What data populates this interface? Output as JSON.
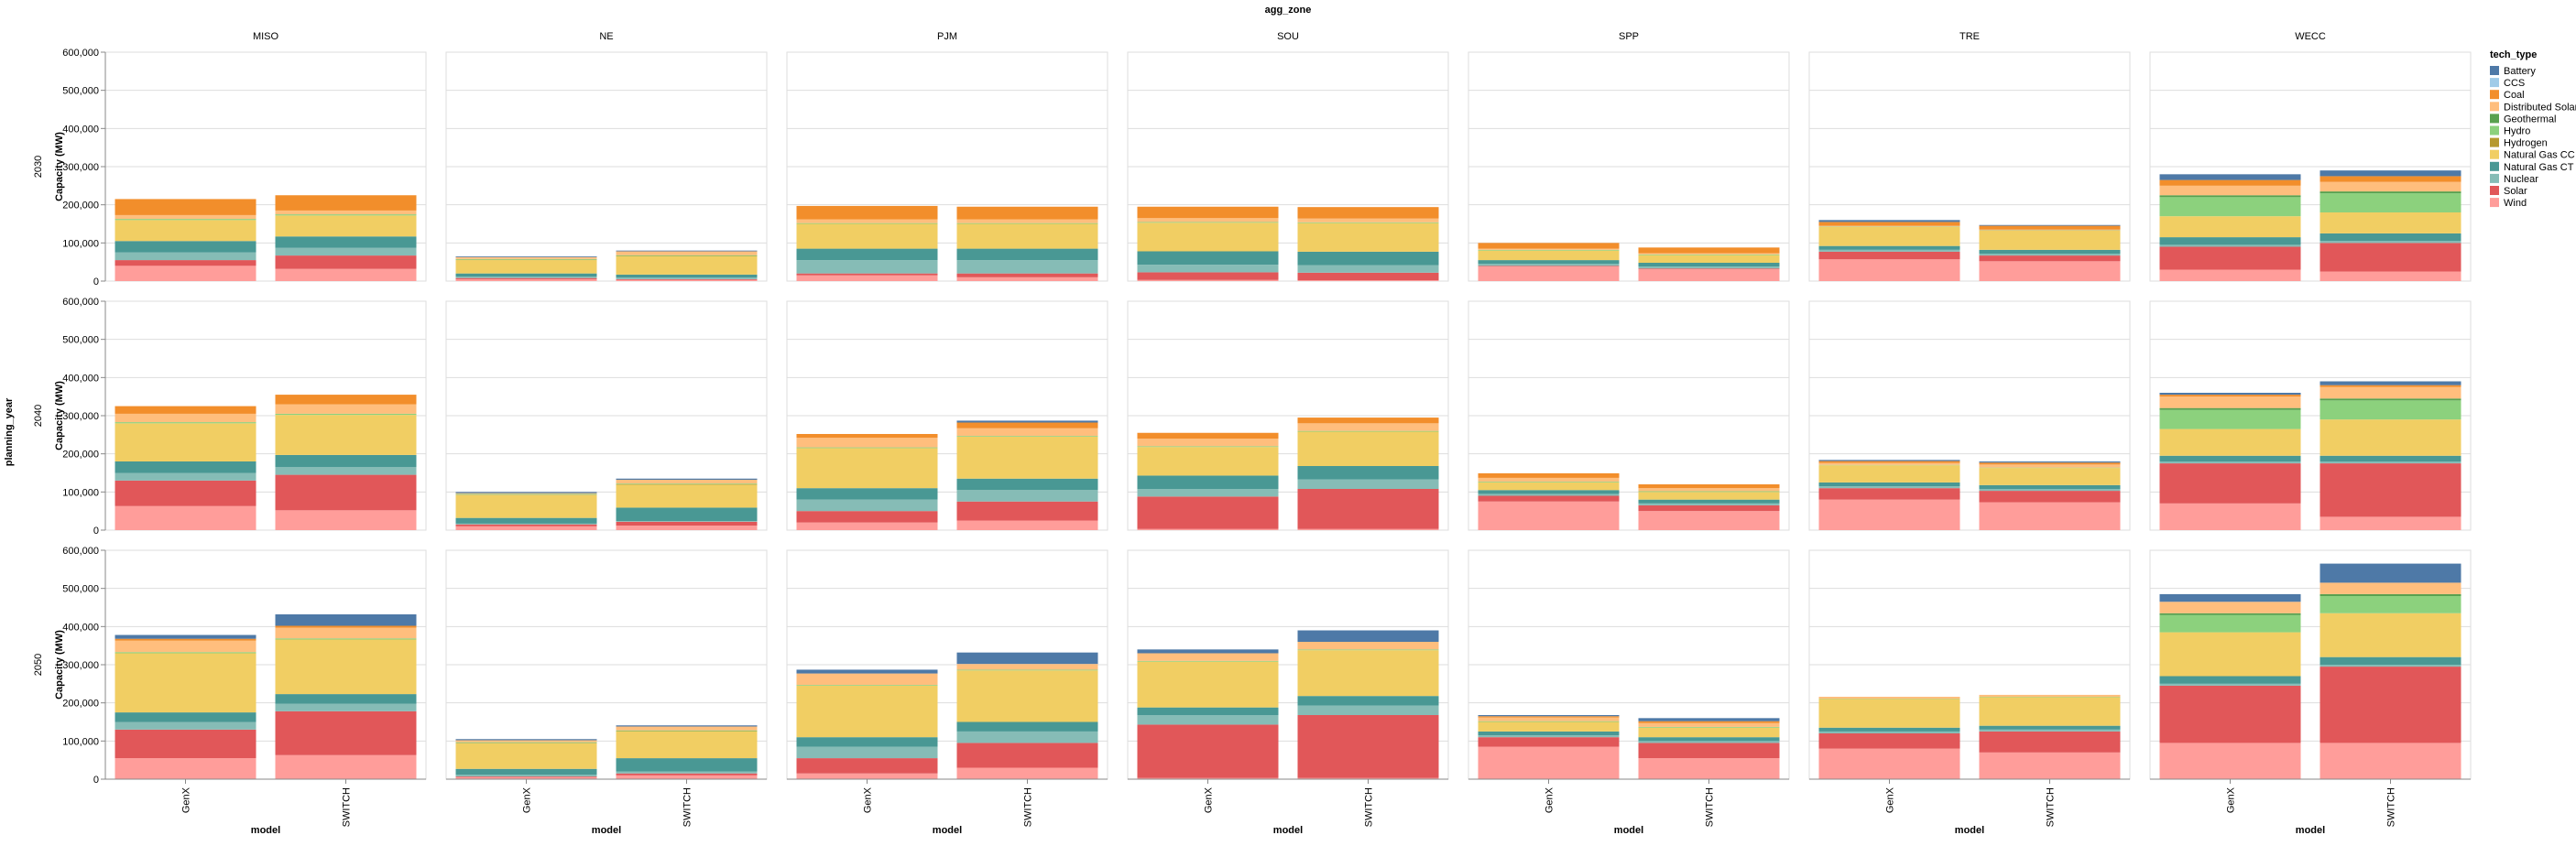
{
  "chart_data": {
    "type": "bar",
    "stacked": true,
    "facet_column_title": "agg_zone",
    "facet_row_title": "planning_year",
    "zones": [
      "MISO",
      "NE",
      "PJM",
      "SOU",
      "SPP",
      "TRE",
      "WECC"
    ],
    "years": [
      "2030",
      "2040",
      "2050"
    ],
    "categories": [
      "GenX",
      "SWITCH"
    ],
    "xlabel": "model",
    "ylabel": "Capacity (MW)",
    "ylim": [
      0,
      600000
    ],
    "yticks": [
      0,
      100000,
      200000,
      300000,
      400000,
      500000,
      600000
    ],
    "ytick_labels": [
      "0",
      "100,000",
      "200,000",
      "300,000",
      "400,000",
      "500,000",
      "600,000"
    ],
    "legend_title": "tech_type",
    "legend_position": "right",
    "grid": true,
    "tech_types": [
      "Battery",
      "CCS",
      "Coal",
      "Distributed Solar",
      "Geothermal",
      "Hydro",
      "Hydrogen",
      "Natural Gas CC",
      "Natural Gas CT",
      "Nuclear",
      "Solar",
      "Wind"
    ],
    "colors": {
      "Battery": "#4e79a7",
      "CCS": "#a0cbe8",
      "Coal": "#f28e2b",
      "Distributed Solar": "#ffbe7d",
      "Geothermal": "#59a14f",
      "Hydro": "#8cd17d",
      "Hydrogen": "#b6992d",
      "Natural Gas CC": "#f1ce63",
      "Natural Gas CT": "#499894",
      "Nuclear": "#86bcb6",
      "Solar": "#e15759",
      "Wind": "#ff9d9a"
    },
    "stack_order": [
      "Wind",
      "Solar",
      "Nuclear",
      "Natural Gas CT",
      "Natural Gas CC",
      "Hydrogen",
      "Hydro",
      "Geothermal",
      "Distributed Solar",
      "Coal",
      "CCS",
      "Battery"
    ],
    "values": {
      "MISO": {
        "2030": {
          "GenX": {
            "Battery": 0,
            "CCS": 0,
            "Coal": 42000,
            "Distributed Solar": 10000,
            "Geothermal": 0,
            "Hydro": 3000,
            "Hydrogen": 0,
            "Natural Gas CC": 55000,
            "Natural Gas CT": 30000,
            "Nuclear": 20000,
            "Solar": 15000,
            "Wind": 40000
          },
          "SWITCH": {
            "Battery": 0,
            "CCS": 0,
            "Coal": 40000,
            "Distributed Solar": 10000,
            "Geothermal": 0,
            "Hydro": 3000,
            "Hydrogen": 0,
            "Natural Gas CC": 55000,
            "Natural Gas CT": 30000,
            "Nuclear": 20000,
            "Solar": 35000,
            "Wind": 32000
          }
        },
        "2040": {
          "GenX": {
            "Battery": 0,
            "CCS": 0,
            "Coal": 20000,
            "Distributed Solar": 22000,
            "Geothermal": 0,
            "Hydro": 3000,
            "Hydrogen": 0,
            "Natural Gas CC": 100000,
            "Natural Gas CT": 30000,
            "Nuclear": 20000,
            "Solar": 67000,
            "Wind": 63000
          },
          "SWITCH": {
            "Battery": 0,
            "CCS": 0,
            "Coal": 25000,
            "Distributed Solar": 25000,
            "Geothermal": 0,
            "Hydro": 3000,
            "Hydrogen": 0,
            "Natural Gas CC": 105000,
            "Natural Gas CT": 32000,
            "Nuclear": 20000,
            "Solar": 93000,
            "Wind": 52000
          }
        },
        "2050": {
          "GenX": {
            "Battery": 10000,
            "CCS": 0,
            "Coal": 5000,
            "Distributed Solar": 30000,
            "Geothermal": 0,
            "Hydro": 3000,
            "Hydrogen": 0,
            "Natural Gas CC": 155000,
            "Natural Gas CT": 25000,
            "Nuclear": 20000,
            "Solar": 75000,
            "Wind": 55000
          },
          "SWITCH": {
            "Battery": 30000,
            "CCS": 0,
            "Coal": 5000,
            "Distributed Solar": 28000,
            "Geothermal": 0,
            "Hydro": 3000,
            "Hydrogen": 0,
            "Natural Gas CC": 143000,
            "Natural Gas CT": 25000,
            "Nuclear": 20000,
            "Solar": 115000,
            "Wind": 63000
          }
        }
      },
      "NE": {
        "2030": {
          "GenX": {
            "Battery": 2000,
            "CCS": 0,
            "Coal": 0,
            "Distributed Solar": 5000,
            "Geothermal": 0,
            "Hydro": 2000,
            "Hydrogen": 1000,
            "Natural Gas CC": 35000,
            "Natural Gas CT": 8000,
            "Nuclear": 4000,
            "Solar": 3000,
            "Wind": 5000
          },
          "SWITCH": {
            "Battery": 2000,
            "CCS": 0,
            "Coal": 0,
            "Distributed Solar": 10000,
            "Geothermal": 0,
            "Hydro": 2000,
            "Hydrogen": 1000,
            "Natural Gas CC": 48000,
            "Natural Gas CT": 8000,
            "Nuclear": 4000,
            "Solar": 2000,
            "Wind": 3000
          }
        },
        "2040": {
          "GenX": {
            "Battery": 3000,
            "CCS": 0,
            "Coal": 0,
            "Distributed Solar": 2000,
            "Geothermal": 0,
            "Hydro": 2000,
            "Hydrogen": 1000,
            "Natural Gas CC": 60000,
            "Natural Gas CT": 15000,
            "Nuclear": 2000,
            "Solar": 5000,
            "Wind": 10000
          },
          "SWITCH": {
            "Battery": 3000,
            "CCS": 0,
            "Coal": 0,
            "Distributed Solar": 10000,
            "Geothermal": 0,
            "Hydro": 2000,
            "Hydrogen": 1000,
            "Natural Gas CC": 60000,
            "Natural Gas CT": 35000,
            "Nuclear": 2000,
            "Solar": 10000,
            "Wind": 12000
          }
        },
        "2050": {
          "GenX": {
            "Battery": 3000,
            "CCS": 0,
            "Coal": 0,
            "Distributed Solar": 5000,
            "Geothermal": 0,
            "Hydro": 2000,
            "Hydrogen": 1000,
            "Natural Gas CC": 67000,
            "Natural Gas CT": 15000,
            "Nuclear": 5000,
            "Solar": 2000,
            "Wind": 5000
          },
          "SWITCH": {
            "Battery": 3000,
            "CCS": 0,
            "Coal": 0,
            "Distributed Solar": 10000,
            "Geothermal": 0,
            "Hydro": 2000,
            "Hydrogen": 1000,
            "Natural Gas CC": 70000,
            "Natural Gas CT": 35000,
            "Nuclear": 5000,
            "Solar": 5000,
            "Wind": 10000
          }
        }
      },
      "PJM": {
        "2030": {
          "GenX": {
            "Battery": 0,
            "CCS": 0,
            "Coal": 35000,
            "Distributed Solar": 10000,
            "Geothermal": 0,
            "Hydro": 2000,
            "Hydrogen": 0,
            "Natural Gas CC": 65000,
            "Natural Gas CT": 30000,
            "Nuclear": 35000,
            "Solar": 5000,
            "Wind": 15000
          },
          "SWITCH": {
            "Battery": 0,
            "CCS": 0,
            "Coal": 33000,
            "Distributed Solar": 10000,
            "Geothermal": 0,
            "Hydro": 2000,
            "Hydrogen": 0,
            "Natural Gas CC": 65000,
            "Natural Gas CT": 30000,
            "Nuclear": 35000,
            "Solar": 10000,
            "Wind": 10000
          }
        },
        "2040": {
          "GenX": {
            "Battery": 0,
            "CCS": 0,
            "Coal": 10000,
            "Distributed Solar": 25000,
            "Geothermal": 0,
            "Hydro": 2000,
            "Hydrogen": 0,
            "Natural Gas CC": 105000,
            "Natural Gas CT": 30000,
            "Nuclear": 30000,
            "Solar": 30000,
            "Wind": 20000
          },
          "SWITCH": {
            "Battery": 5000,
            "CCS": 0,
            "Coal": 15000,
            "Distributed Solar": 20000,
            "Geothermal": 0,
            "Hydro": 2000,
            "Hydrogen": 0,
            "Natural Gas CC": 110000,
            "Natural Gas CT": 30000,
            "Nuclear": 30000,
            "Solar": 50000,
            "Wind": 25000
          }
        },
        "2050": {
          "GenX": {
            "Battery": 10000,
            "CCS": 0,
            "Coal": 0,
            "Distributed Solar": 30000,
            "Geothermal": 0,
            "Hydro": 2000,
            "Hydrogen": 0,
            "Natural Gas CC": 135000,
            "Natural Gas CT": 25000,
            "Nuclear": 30000,
            "Solar": 40000,
            "Wind": 15000
          },
          "SWITCH": {
            "Battery": 30000,
            "CCS": 0,
            "Coal": 0,
            "Distributed Solar": 15000,
            "Geothermal": 0,
            "Hydro": 2000,
            "Hydrogen": 0,
            "Natural Gas CC": 135000,
            "Natural Gas CT": 25000,
            "Nuclear": 30000,
            "Solar": 65000,
            "Wind": 30000
          }
        }
      },
      "SOU": {
        "2030": {
          "GenX": {
            "Battery": 0,
            "CCS": 0,
            "Coal": 30000,
            "Distributed Solar": 10000,
            "Geothermal": 0,
            "Hydro": 2000,
            "Hydrogen": 0,
            "Natural Gas CC": 75000,
            "Natural Gas CT": 35000,
            "Nuclear": 20000,
            "Solar": 20000,
            "Wind": 3000
          },
          "SWITCH": {
            "Battery": 0,
            "CCS": 0,
            "Coal": 30000,
            "Distributed Solar": 10000,
            "Geothermal": 0,
            "Hydro": 2000,
            "Hydrogen": 0,
            "Natural Gas CC": 75000,
            "Natural Gas CT": 35000,
            "Nuclear": 20000,
            "Solar": 20000,
            "Wind": 2000
          }
        },
        "2040": {
          "GenX": {
            "Battery": 0,
            "CCS": 0,
            "Coal": 15000,
            "Distributed Solar": 20000,
            "Geothermal": 0,
            "Hydro": 2000,
            "Hydrogen": 0,
            "Natural Gas CC": 75000,
            "Natural Gas CT": 35000,
            "Nuclear": 20000,
            "Solar": 85000,
            "Wind": 3000
          },
          "SWITCH": {
            "Battery": 0,
            "CCS": 0,
            "Coal": 15000,
            "Distributed Solar": 20000,
            "Geothermal": 0,
            "Hydro": 2000,
            "Hydrogen": 0,
            "Natural Gas CC": 90000,
            "Natural Gas CT": 35000,
            "Nuclear": 25000,
            "Solar": 105000,
            "Wind": 3000
          }
        },
        "2050": {
          "GenX": {
            "Battery": 10000,
            "CCS": 0,
            "Coal": 0,
            "Distributed Solar": 20000,
            "Geothermal": 0,
            "Hydro": 2000,
            "Hydrogen": 0,
            "Natural Gas CC": 120000,
            "Natural Gas CT": 20000,
            "Nuclear": 25000,
            "Solar": 140000,
            "Wind": 3000
          },
          "SWITCH": {
            "Battery": 30000,
            "CCS": 0,
            "Coal": 0,
            "Distributed Solar": 20000,
            "Geothermal": 0,
            "Hydro": 2000,
            "Hydrogen": 0,
            "Natural Gas CC": 120000,
            "Natural Gas CT": 25000,
            "Nuclear": 25000,
            "Solar": 165000,
            "Wind": 3000
          }
        }
      },
      "SPP": {
        "2030": {
          "GenX": {
            "Battery": 0,
            "CCS": 0,
            "Coal": 15000,
            "Distributed Solar": 3000,
            "Geothermal": 0,
            "Hydro": 2000,
            "Hydrogen": 0,
            "Natural Gas CC": 25000,
            "Natural Gas CT": 10000,
            "Nuclear": 5000,
            "Solar": 2000,
            "Wind": 38000
          },
          "SWITCH": {
            "Battery": 0,
            "CCS": 0,
            "Coal": 15000,
            "Distributed Solar": 3000,
            "Geothermal": 0,
            "Hydro": 2000,
            "Hydrogen": 0,
            "Natural Gas CC": 20000,
            "Natural Gas CT": 10000,
            "Nuclear": 5000,
            "Solar": 2000,
            "Wind": 31000
          }
        },
        "2040": {
          "GenX": {
            "Battery": 0,
            "CCS": 0,
            "Coal": 12000,
            "Distributed Solar": 10000,
            "Geothermal": 0,
            "Hydro": 2000,
            "Hydrogen": 0,
            "Natural Gas CC": 20000,
            "Natural Gas CT": 10000,
            "Nuclear": 5000,
            "Solar": 15000,
            "Wind": 75000
          },
          "SWITCH": {
            "Battery": 0,
            "CCS": 0,
            "Coal": 10000,
            "Distributed Solar": 8000,
            "Geothermal": 0,
            "Hydro": 2000,
            "Hydrogen": 0,
            "Natural Gas CC": 20000,
            "Natural Gas CT": 10000,
            "Nuclear": 5000,
            "Solar": 15000,
            "Wind": 50000
          }
        },
        "2050": {
          "GenX": {
            "Battery": 3000,
            "CCS": 0,
            "Coal": 3000,
            "Distributed Solar": 10000,
            "Geothermal": 0,
            "Hydro": 2000,
            "Hydrogen": 0,
            "Natural Gas CC": 25000,
            "Natural Gas CT": 10000,
            "Nuclear": 5000,
            "Solar": 25000,
            "Wind": 85000
          },
          "SWITCH": {
            "Battery": 8000,
            "CCS": 0,
            "Coal": 5000,
            "Distributed Solar": 10000,
            "Geothermal": 0,
            "Hydro": 2000,
            "Hydrogen": 0,
            "Natural Gas CC": 25000,
            "Natural Gas CT": 10000,
            "Nuclear": 5000,
            "Solar": 40000,
            "Wind": 55000
          }
        }
      },
      "TRE": {
        "2030": {
          "GenX": {
            "Battery": 5000,
            "CCS": 0,
            "Coal": 10000,
            "Distributed Solar": 2000,
            "Geothermal": 0,
            "Hydro": 1000,
            "Hydrogen": 0,
            "Natural Gas CC": 50000,
            "Natural Gas CT": 10000,
            "Nuclear": 5000,
            "Solar": 20000,
            "Wind": 57000
          },
          "SWITCH": {
            "Battery": 2000,
            "CCS": 0,
            "Coal": 10000,
            "Distributed Solar": 2000,
            "Geothermal": 0,
            "Hydro": 1000,
            "Hydrogen": 0,
            "Natural Gas CC": 50000,
            "Natural Gas CT": 10000,
            "Nuclear": 5000,
            "Solar": 15000,
            "Wind": 52000
          }
        },
        "2040": {
          "GenX": {
            "Battery": 3000,
            "CCS": 0,
            "Coal": 5000,
            "Distributed Solar": 5000,
            "Geothermal": 0,
            "Hydro": 1000,
            "Hydrogen": 0,
            "Natural Gas CC": 45000,
            "Natural Gas CT": 10000,
            "Nuclear": 5000,
            "Solar": 30000,
            "Wind": 80000
          },
          "SWITCH": {
            "Battery": 3000,
            "CCS": 0,
            "Coal": 5000,
            "Distributed Solar": 8000,
            "Geothermal": 0,
            "Hydro": 1000,
            "Hydrogen": 0,
            "Natural Gas CC": 45000,
            "Natural Gas CT": 10000,
            "Nuclear": 5000,
            "Solar": 30000,
            "Wind": 73000
          }
        },
        "2050": {
          "GenX": {
            "Battery": 0,
            "CCS": 0,
            "Coal": 0,
            "Distributed Solar": 5000,
            "Geothermal": 0,
            "Hydro": 1000,
            "Hydrogen": 0,
            "Natural Gas CC": 75000,
            "Natural Gas CT": 10000,
            "Nuclear": 5000,
            "Solar": 40000,
            "Wind": 80000
          },
          "SWITCH": {
            "Battery": 0,
            "CCS": 0,
            "Coal": 0,
            "Distributed Solar": 5000,
            "Geothermal": 0,
            "Hydro": 1000,
            "Hydrogen": 0,
            "Natural Gas CC": 75000,
            "Natural Gas CT": 10000,
            "Nuclear": 5000,
            "Solar": 55000,
            "Wind": 70000
          }
        }
      },
      "WECC": {
        "2030": {
          "GenX": {
            "Battery": 15000,
            "CCS": 0,
            "Coal": 15000,
            "Distributed Solar": 25000,
            "Geothermal": 5000,
            "Hydro": 50000,
            "Hydrogen": 0,
            "Natural Gas CC": 55000,
            "Natural Gas CT": 20000,
            "Nuclear": 5000,
            "Solar": 60000,
            "Wind": 30000
          },
          "SWITCH": {
            "Battery": 15000,
            "CCS": 0,
            "Coal": 15000,
            "Distributed Solar": 25000,
            "Geothermal": 5000,
            "Hydro": 50000,
            "Hydrogen": 0,
            "Natural Gas CC": 55000,
            "Natural Gas CT": 20000,
            "Nuclear": 5000,
            "Solar": 75000,
            "Wind": 25000
          }
        },
        "2040": {
          "GenX": {
            "Battery": 5000,
            "CCS": 0,
            "Coal": 5000,
            "Distributed Solar": 30000,
            "Geothermal": 5000,
            "Hydro": 50000,
            "Hydrogen": 0,
            "Natural Gas CC": 70000,
            "Natural Gas CT": 15000,
            "Nuclear": 5000,
            "Solar": 105000,
            "Wind": 70000
          },
          "SWITCH": {
            "Battery": 10000,
            "CCS": 0,
            "Coal": 5000,
            "Distributed Solar": 30000,
            "Geothermal": 5000,
            "Hydro": 50000,
            "Hydrogen": 0,
            "Natural Gas CC": 95000,
            "Natural Gas CT": 15000,
            "Nuclear": 5000,
            "Solar": 140000,
            "Wind": 35000
          }
        },
        "2050": {
          "GenX": {
            "Battery": 20000,
            "CCS": 0,
            "Coal": 0,
            "Distributed Solar": 30000,
            "Geothermal": 5000,
            "Hydro": 45000,
            "Hydrogen": 0,
            "Natural Gas CC": 115000,
            "Natural Gas CT": 20000,
            "Nuclear": 5000,
            "Solar": 150000,
            "Wind": 95000
          },
          "SWITCH": {
            "Battery": 50000,
            "CCS": 0,
            "Coal": 0,
            "Distributed Solar": 30000,
            "Geothermal": 5000,
            "Hydro": 45000,
            "Hydrogen": 0,
            "Natural Gas CC": 115000,
            "Natural Gas CT": 20000,
            "Nuclear": 5000,
            "Solar": 200000,
            "Wind": 95000
          }
        }
      }
    }
  }
}
